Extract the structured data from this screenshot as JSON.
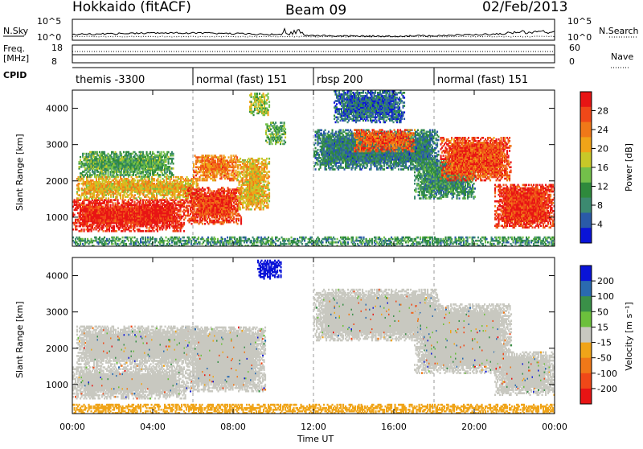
{
  "header": {
    "radar_title": "Hokkaido (fitACF)",
    "beam": "Beam 09",
    "date": "02/Feb/2013"
  },
  "top_panel": {
    "nsky_label": "N.Sky",
    "nsearch_label": "N.Search",
    "nave_label": "Nave",
    "freq_label_line1": "Freq.",
    "freq_label_line2": "[MHz]",
    "cpid_label": "CPID",
    "noise_ticks": [
      "10^5",
      "10^0"
    ],
    "freq_ticks": [
      "18",
      "8"
    ],
    "nave_ticks": [
      "60",
      "0"
    ]
  },
  "cpid_modes": [
    {
      "label": "themis -3300",
      "start_hour": 0
    },
    {
      "label": "normal (fast) 151",
      "start_hour": 6
    },
    {
      "label": "rbsp 200",
      "start_hour": 12
    },
    {
      "label": "normal (fast) 151",
      "start_hour": 18
    }
  ],
  "axes": {
    "x_label": "Time UT",
    "x_ticks": [
      "00:00",
      "04:00",
      "08:00",
      "12:00",
      "16:00",
      "20:00",
      "00:00"
    ],
    "y_label": "Slant Range [km]",
    "y_ticks": [
      "4000",
      "3000",
      "2000",
      "1000"
    ],
    "x_range_hours": [
      0,
      24
    ],
    "y_range_km": [
      200,
      4500
    ]
  },
  "colorbars": {
    "power": {
      "label": "Power [dB]",
      "ticks": [
        "28",
        "24",
        "20",
        "16",
        "12",
        "8",
        "4"
      ],
      "colors": [
        "#0a14d8",
        "#2a5aa8",
        "#3c8a70",
        "#2e8a3c",
        "#73c04a",
        "#c8c828",
        "#f0a418",
        "#f07818",
        "#f04818",
        "#e81414"
      ]
    },
    "velocity": {
      "label": "Velocity [m s⁻¹]",
      "ticks": [
        "200",
        "100",
        "50",
        "15",
        "-15",
        "-50",
        "-100",
        "-200"
      ],
      "colors": [
        "#0a14d8",
        "#2a6ab0",
        "#3a9048",
        "#6cc03c",
        "#c8c8c0",
        "#f0a418",
        "#f07818",
        "#f04818",
        "#e81414"
      ]
    }
  },
  "chart_data": [
    {
      "type": "heatmap",
      "title": "Power",
      "xlabel": "Time UT",
      "ylabel": "Slant Range [km]",
      "xlim": [
        0,
        24
      ],
      "ylim": [
        200,
        4500
      ],
      "colorbar_label": "Power [dB]",
      "colorbar_range": [
        0,
        32
      ],
      "regions": [
        {
          "t0": 0.0,
          "t1": 5.6,
          "r0": 600,
          "r1": 1500,
          "value": 30
        },
        {
          "t0": 0.2,
          "t1": 6.2,
          "r0": 1500,
          "r1": 2100,
          "value": 20
        },
        {
          "t0": 0.3,
          "t1": 5.0,
          "r0": 2100,
          "r1": 2800,
          "value": 12
        },
        {
          "t0": 5.6,
          "t1": 8.4,
          "r0": 800,
          "r1": 1800,
          "value": 28
        },
        {
          "t0": 6.0,
          "t1": 8.2,
          "r0": 2000,
          "r1": 2700,
          "value": 24
        },
        {
          "t0": 8.2,
          "t1": 9.8,
          "r0": 1200,
          "r1": 2600,
          "value": 20
        },
        {
          "t0": 8.8,
          "t1": 9.8,
          "r0": 3800,
          "r1": 4400,
          "value": 16
        },
        {
          "t0": 9.6,
          "t1": 10.6,
          "r0": 3000,
          "r1": 3600,
          "value": 12
        },
        {
          "t0": 12.0,
          "t1": 18.2,
          "r0": 2300,
          "r1": 3400,
          "value": 8
        },
        {
          "t0": 14.0,
          "t1": 17.0,
          "r0": 2800,
          "r1": 3400,
          "value": 26
        },
        {
          "t0": 13.0,
          "t1": 16.5,
          "r0": 3600,
          "r1": 4500,
          "value": 6
        },
        {
          "t0": 17.0,
          "t1": 20.0,
          "r0": 1500,
          "r1": 2600,
          "value": 10
        },
        {
          "t0": 18.3,
          "t1": 21.8,
          "r0": 2000,
          "r1": 3200,
          "value": 27
        },
        {
          "t0": 21.0,
          "t1": 24.0,
          "r0": 700,
          "r1": 1900,
          "value": 29
        },
        {
          "t0": 0.0,
          "t1": 24.0,
          "r0": 200,
          "r1": 450,
          "value": 10
        }
      ]
    },
    {
      "type": "heatmap",
      "title": "Velocity",
      "xlabel": "Time UT",
      "ylabel": "Slant Range [km]",
      "xlim": [
        0,
        24
      ],
      "ylim": [
        200,
        4500
      ],
      "colorbar_label": "Velocity [m s⁻¹]",
      "colorbar_range": [
        -250,
        250
      ],
      "regions": [
        {
          "t0": 0.0,
          "t1": 5.6,
          "r0": 600,
          "r1": 1500,
          "value": 0
        },
        {
          "t0": 0.2,
          "t1": 6.2,
          "r0": 1500,
          "r1": 2600,
          "value": 0
        },
        {
          "t0": 5.6,
          "t1": 9.6,
          "r0": 800,
          "r1": 2600,
          "value": 0
        },
        {
          "t0": 9.2,
          "t1": 10.4,
          "r0": 3900,
          "r1": 4400,
          "value": 210
        },
        {
          "t0": 12.0,
          "t1": 18.2,
          "r0": 2200,
          "r1": 3600,
          "value": 0
        },
        {
          "t0": 17.0,
          "t1": 21.8,
          "r0": 1300,
          "r1": 3200,
          "value": 0
        },
        {
          "t0": 21.0,
          "t1": 24.0,
          "r0": 700,
          "r1": 1900,
          "value": 0
        },
        {
          "t0": 0.0,
          "t1": 24.0,
          "r0": 200,
          "r1": 450,
          "value": -60
        }
      ]
    }
  ]
}
